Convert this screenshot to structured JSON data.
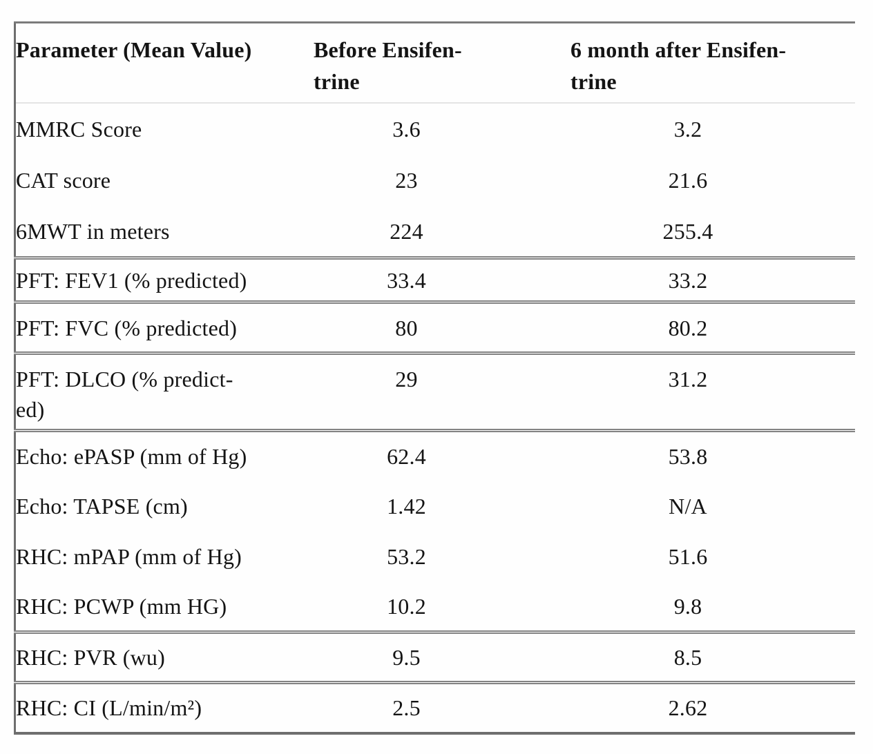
{
  "table": {
    "headers": {
      "param": "Parameter (Mean Value)",
      "before": "Before Ensifen-\ntrine",
      "after": "6 month after Ensifen-\ntrine"
    },
    "rows": [
      {
        "label": "MMRC Score",
        "before": "3.6",
        "after": "3.2"
      },
      {
        "label": "CAT score",
        "before": "23",
        "after": "21.6"
      },
      {
        "label": "6MWT in meters",
        "before": "224",
        "after": "255.4"
      },
      {
        "label": "PFT: FEV1 (% predicted)",
        "before": "33.4",
        "after": "33.2"
      },
      {
        "label": "PFT: FVC (% predicted)",
        "before": "80",
        "after": "80.2"
      },
      {
        "label": "PFT: DLCO (% predict-\ned)",
        "before": "29",
        "after": "31.2"
      },
      {
        "label": "Echo: ePASP (mm of Hg)",
        "before": "62.4",
        "after": "53.8"
      },
      {
        "label": "Echo: TAPSE (cm)",
        "before": "1.42",
        "after": "N/A"
      },
      {
        "label": "RHC: mPAP (mm of Hg)",
        "before": "53.2",
        "after": "51.6"
      },
      {
        "label": "RHC: PCWP (mm HG)",
        "before": "10.2",
        "after": "9.8"
      },
      {
        "label": "RHC: PVR (wu)",
        "before": "9.5",
        "after": "8.5"
      },
      {
        "label": "RHC: CI (L/min/m²)",
        "before": "2.5",
        "after": "2.62"
      }
    ]
  },
  "chart_data": {
    "type": "table",
    "columns": [
      "Parameter (Mean Value)",
      "Before Ensifentrine",
      "6 month after Ensifentrine"
    ],
    "rows": [
      [
        "MMRC Score",
        3.6,
        3.2
      ],
      [
        "CAT score",
        23,
        21.6
      ],
      [
        "6MWT in meters",
        224,
        255.4
      ],
      [
        "PFT: FEV1 (% predicted)",
        33.4,
        33.2
      ],
      [
        "PFT: FVC (% predicted)",
        80,
        80.2
      ],
      [
        "PFT: DLCO (% predicted)",
        29,
        31.2
      ],
      [
        "Echo: ePASP (mm of Hg)",
        62.4,
        53.8
      ],
      [
        "Echo: TAPSE (cm)",
        1.42,
        "N/A"
      ],
      [
        "RHC: mPAP (mm of Hg)",
        53.2,
        51.6
      ],
      [
        "RHC: PCWP (mm HG)",
        10.2,
        9.8
      ],
      [
        "RHC: PVR (wu)",
        9.5,
        8.5
      ],
      [
        "RHC: CI (L/min/m²)",
        2.5,
        2.62
      ]
    ]
  }
}
